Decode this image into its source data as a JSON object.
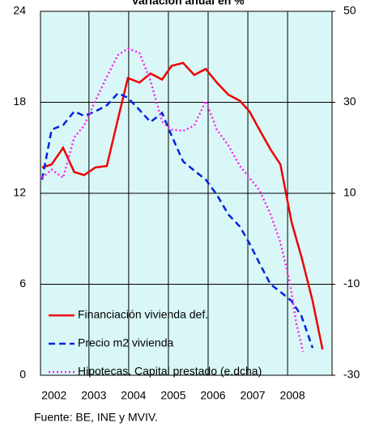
{
  "chart_data": {
    "type": "line",
    "title": "Variación anual en %",
    "source": "Fuente: BE, INE y MVIV.",
    "xlim": [
      2001.78,
      2009.12
    ],
    "xticks": [
      {
        "value": 2002,
        "label": "2002"
      },
      {
        "value": 2003,
        "label": "2003"
      },
      {
        "value": 2004,
        "label": "2004"
      },
      {
        "value": 2005,
        "label": "2005"
      },
      {
        "value": 2006,
        "label": "2006"
      },
      {
        "value": 2007,
        "label": "2007"
      },
      {
        "value": 2008,
        "label": "2008"
      }
    ],
    "ylim": [
      0,
      24
    ],
    "yticks": [
      0,
      6,
      12,
      18,
      24
    ],
    "y2lim": [
      -30,
      50
    ],
    "y2ticks": [
      -30,
      -10,
      10,
      30,
      50
    ],
    "grid": true,
    "legend": "lower left",
    "background": "#d9f7f7",
    "series": [
      {
        "name": "Financiación vivienda def.",
        "color": "#ee0000",
        "dash": "solid",
        "x": [
          2001.82,
          2002.06,
          2002.35,
          2002.63,
          2002.88,
          2003.16,
          2003.45,
          2003.73,
          2003.98,
          2004.27,
          2004.55,
          2004.84,
          2005.08,
          2005.37,
          2005.65,
          2005.94,
          2006.22,
          2006.51,
          2006.8,
          2007.04,
          2007.29,
          2007.57,
          2007.82,
          2008.1,
          2008.35,
          2008.63,
          2008.88
        ],
        "values": [
          13.7,
          13.9,
          15.0,
          13.4,
          13.2,
          13.7,
          13.8,
          16.9,
          19.6,
          19.3,
          19.9,
          19.5,
          20.4,
          20.6,
          19.8,
          20.2,
          19.3,
          18.5,
          18.1,
          17.4,
          16.2,
          14.9,
          13.9,
          10.1,
          7.8,
          4.9,
          1.7
        ]
      },
      {
        "name": "Precio m2 vivienda",
        "color": "#0022dd",
        "dash": "dashed",
        "x": [
          2001.82,
          2002.06,
          2002.35,
          2002.63,
          2002.88,
          2003.16,
          2003.45,
          2003.73,
          2003.98,
          2004.27,
          2004.55,
          2004.84,
          2005.08,
          2005.37,
          2005.65,
          2005.94,
          2006.22,
          2006.51,
          2006.8,
          2007.04,
          2007.29,
          2007.57,
          2007.82,
          2008.1,
          2008.35,
          2008.63
        ],
        "values": [
          12.9,
          16.2,
          16.5,
          17.4,
          17.1,
          17.4,
          17.8,
          18.6,
          18.3,
          17.5,
          16.7,
          17.3,
          15.8,
          14.1,
          13.5,
          12.9,
          11.9,
          10.6,
          9.8,
          8.7,
          7.4,
          6.0,
          5.5,
          4.9,
          3.9,
          1.8
        ]
      },
      {
        "name": "Hipotecas. Capital prestado (e.dcha)",
        "color": "#ff22ee",
        "dash": "dotted",
        "axis": "y2",
        "x": [
          2001.82,
          2002.06,
          2002.35,
          2002.63,
          2002.88,
          2003.16,
          2003.45,
          2003.73,
          2003.98,
          2004.27,
          2004.55,
          2004.84,
          2005.08,
          2005.37,
          2005.65,
          2005.94,
          2006.22,
          2006.51,
          2006.8,
          2007.04,
          2007.29,
          2007.57,
          2007.82,
          2008.06,
          2008.22,
          2008.39
        ],
        "values": [
          13.4,
          15.2,
          13.4,
          22.3,
          24.9,
          30.3,
          35.6,
          40.4,
          41.8,
          40.9,
          34.7,
          25.8,
          24.0,
          23.7,
          24.9,
          30.3,
          24.0,
          20.5,
          16.0,
          13.4,
          10.7,
          5.4,
          -0.8,
          -9.7,
          -18.6,
          -24.8
        ]
      }
    ]
  }
}
